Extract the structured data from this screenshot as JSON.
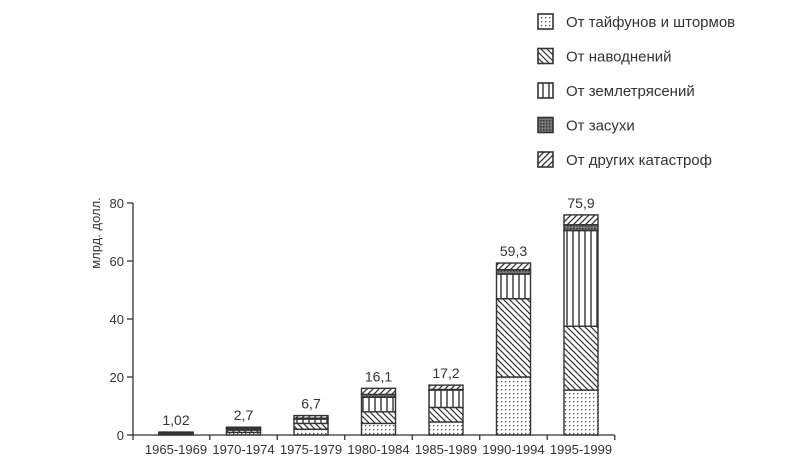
{
  "chart_data": {
    "type": "bar",
    "stacked": true,
    "ylabel": "млрд. долл.",
    "ylim": [
      0,
      80
    ],
    "yticks": [
      0,
      20,
      40,
      60,
      80
    ],
    "grid": false,
    "legend_position": "top-right",
    "categories": [
      "1965-1969",
      "1970-1974",
      "1975-1979",
      "1980-1984",
      "1985-1989",
      "1990-1994",
      "1995-1999"
    ],
    "totals": [
      "1,02",
      "2,7",
      "6,7",
      "16,1",
      "17,2",
      "59,3",
      "75,9"
    ],
    "series": [
      {
        "name": "От тайфунов и штормов",
        "pattern": "dots",
        "values": [
          0.4,
          0.9,
          2.0,
          4.0,
          4.5,
          20.0,
          15.5
        ]
      },
      {
        "name": "От наводнений",
        "pattern": "diagonal-back",
        "values": [
          0.3,
          0.8,
          2.0,
          4.0,
          5.0,
          27.0,
          22.0
        ]
      },
      {
        "name": "От землетрясений",
        "pattern": "vertical",
        "values": [
          0.1,
          0.5,
          1.5,
          5.0,
          6.0,
          8.5,
          33.0
        ]
      },
      {
        "name": "От засухи",
        "pattern": "crosshatch",
        "values": [
          0.1,
          0.2,
          0.3,
          1.0,
          0.2,
          1.5,
          2.0
        ]
      },
      {
        "name": "От других катастроф",
        "pattern": "diagonal",
        "values": [
          0.12,
          0.3,
          0.9,
          2.1,
          1.5,
          2.3,
          3.4
        ]
      }
    ]
  }
}
